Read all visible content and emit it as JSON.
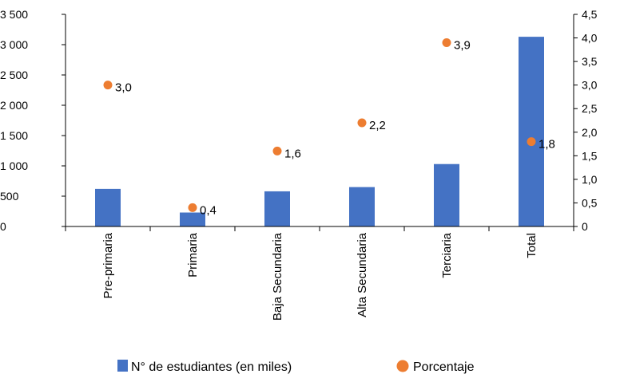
{
  "chart_data": {
    "type": "bar",
    "categories": [
      "Pre-primaria",
      "Primaria",
      "Baja Secundaria",
      "Alta Secundaria",
      "Terciaria",
      "Total"
    ],
    "series": [
      {
        "name": "N° de estudiantes (en miles)",
        "type": "bar",
        "axis": "left",
        "color": "#4472C4",
        "values": [
          620,
          230,
          580,
          650,
          1030,
          3130
        ]
      },
      {
        "name": "Porcentaje",
        "type": "scatter",
        "axis": "right",
        "color": "#ED7D31",
        "values": [
          3.0,
          0.4,
          1.6,
          2.2,
          3.9,
          1.8
        ],
        "labels": [
          "3,0",
          "0,4",
          "1,6",
          "2,2",
          "3,9",
          "1,8"
        ]
      }
    ],
    "y_left": {
      "ylim": [
        0,
        3500
      ],
      "ticks": [
        0,
        500,
        1000,
        1500,
        2000,
        2500,
        3000,
        3500
      ],
      "tick_labels": [
        "0",
        "500",
        "1 000",
        "1 500",
        "2 000",
        "2 500",
        "3 000",
        "3 500"
      ]
    },
    "y_right": {
      "ylim": [
        0,
        4.5
      ],
      "ticks": [
        0,
        0.5,
        1.0,
        1.5,
        2.0,
        2.5,
        3.0,
        3.5,
        4.0,
        4.5
      ],
      "tick_labels": [
        "0",
        "0,5",
        "1,0",
        "1,5",
        "2,0",
        "2,5",
        "3,0",
        "3,5",
        "4,0",
        "4,5"
      ]
    },
    "grid": false,
    "legend_position": "bottom"
  }
}
